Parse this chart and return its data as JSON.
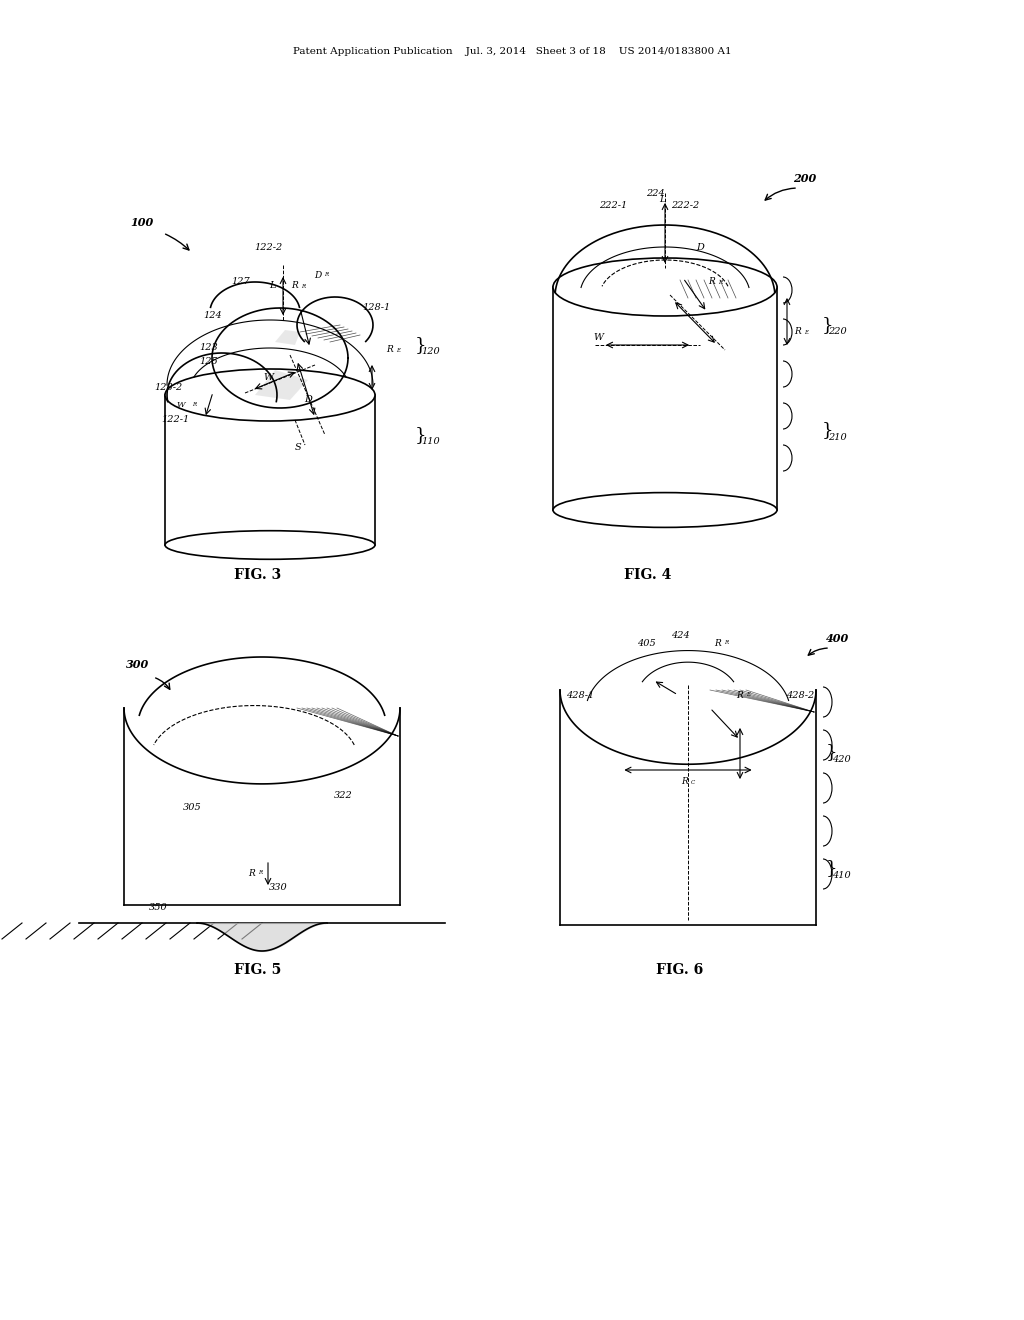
{
  "bg_color": "#ffffff",
  "header_text": "Patent Application Publication    Jul. 3, 2014   Sheet 3 of 18    US 2014/0183800 A1",
  "fig3_label": "FIG. 3",
  "fig4_label": "FIG. 4",
  "fig5_label": "FIG. 5",
  "fig6_label": "FIG. 6",
  "fig3_ref": "100",
  "fig4_ref": "200",
  "fig5_ref": "300",
  "fig6_ref": "400"
}
